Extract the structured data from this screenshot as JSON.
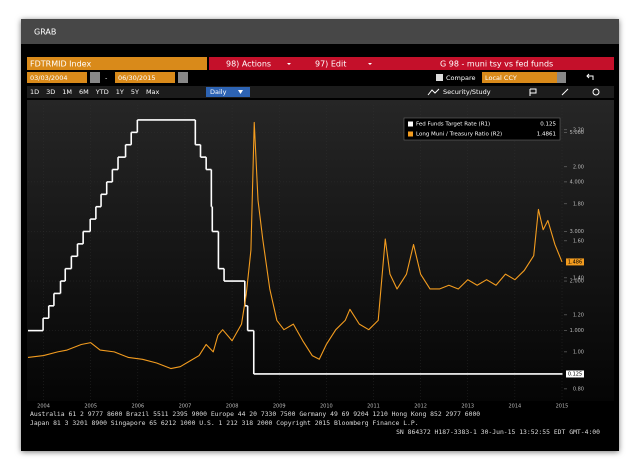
{
  "window_title": "GRAB",
  "toolbar": {
    "security": "FDTRMID Index",
    "actions": "98) Actions",
    "edit": "97) Edit",
    "page_title": "G 98 - muni tsy vs fed funds",
    "start_date": "03/03/2004",
    "date_separator": "-",
    "end_date": "06/30/2015",
    "compare": "Compare",
    "currency": "Local CCY",
    "periods": [
      "1D",
      "3D",
      "1M",
      "6M",
      "YTD",
      "1Y",
      "5Y",
      "Max"
    ],
    "frequency": "Daily",
    "study": "Security/Study"
  },
  "chart_data": {
    "type": "line",
    "xlim": [
      2004.17,
      2015.5
    ],
    "xticks": [
      {
        "value": 2004.5,
        "label": "2004"
      },
      {
        "value": 2005.5,
        "label": "2005"
      },
      {
        "value": 2006.5,
        "label": "2006"
      },
      {
        "value": 2007.5,
        "label": "2007"
      },
      {
        "value": 2008.5,
        "label": "2008"
      },
      {
        "value": 2009.5,
        "label": "2009"
      },
      {
        "value": 2010.5,
        "label": "2010"
      },
      {
        "value": 2011.5,
        "label": "2011"
      },
      {
        "value": 2012.5,
        "label": "2012"
      },
      {
        "value": 2013.5,
        "label": "2013"
      },
      {
        "value": 2014.5,
        "label": "2014"
      },
      {
        "value": 2015.5,
        "label": "2015"
      }
    ],
    "ylim": [
      -0.4,
      5.35
    ],
    "yticks": [
      {
        "value": 1,
        "label": "1.000"
      },
      {
        "value": 2,
        "label": "2.000"
      },
      {
        "value": 3,
        "label": "3.000"
      },
      {
        "value": 4,
        "label": "4.000"
      },
      {
        "value": 5,
        "label": "5.000"
      }
    ],
    "y2lim": [
      0.74,
      2.28
    ],
    "y2ticks": [
      {
        "value": 0.8,
        "label": "0.80"
      },
      {
        "value": 1.0,
        "label": "1.00"
      },
      {
        "value": 1.2,
        "label": "1.20"
      },
      {
        "value": 1.4,
        "label": "1.40"
      },
      {
        "value": 1.6,
        "label": "1.60"
      },
      {
        "value": 1.8,
        "label": "1.80"
      },
      {
        "value": 2.0,
        "label": "2.00"
      },
      {
        "value": 2.2,
        "label": "2.20"
      }
    ],
    "grid": true,
    "legend": "upper right",
    "series": [
      {
        "name": "Fed Funds Target Rate (R1)",
        "color": "#ffffff",
        "axis": "y",
        "step": true,
        "x": [
          2004.17,
          2004.49,
          2004.61,
          2004.72,
          2004.86,
          2004.96,
          2005.09,
          2005.22,
          2005.34,
          2005.49,
          2005.61,
          2005.72,
          2005.84,
          2005.96,
          2006.08,
          2006.24,
          2006.36,
          2006.49,
          2007.72,
          2007.83,
          2007.95,
          2008.06,
          2008.08,
          2008.21,
          2008.33,
          2008.77,
          2008.83,
          2008.96,
          2015.5
        ],
        "values": [
          1.0,
          1.25,
          1.5,
          1.75,
          2.0,
          2.25,
          2.5,
          2.75,
          3.0,
          3.25,
          3.5,
          3.75,
          4.0,
          4.25,
          4.5,
          4.75,
          5.0,
          5.25,
          4.75,
          4.5,
          4.25,
          3.5,
          3.0,
          2.25,
          2.0,
          1.5,
          1.0,
          0.125,
          0.125
        ]
      },
      {
        "name": "Long Muni / Treasury Ratio (R2)",
        "color": "#f39c1f",
        "axis": "y2",
        "end_tag": "1.486",
        "x": [
          2004.17,
          2004.5,
          2004.8,
          2005.0,
          2005.3,
          2005.5,
          2005.7,
          2006.0,
          2006.3,
          2006.6,
          2006.9,
          2007.2,
          2007.4,
          2007.6,
          2007.8,
          2007.95,
          2008.1,
          2008.2,
          2008.3,
          2008.5,
          2008.7,
          2008.8,
          2008.9,
          2008.97,
          2009.05,
          2009.15,
          2009.3,
          2009.45,
          2009.6,
          2009.8,
          2010.0,
          2010.2,
          2010.35,
          2010.5,
          2010.7,
          2010.9,
          2011.0,
          2011.2,
          2011.4,
          2011.6,
          2011.75,
          2011.85,
          2012.0,
          2012.2,
          2012.35,
          2012.5,
          2012.7,
          2012.9,
          2013.1,
          2013.3,
          2013.5,
          2013.7,
          2013.9,
          2014.1,
          2014.3,
          2014.5,
          2014.7,
          2014.9,
          2015.0,
          2015.1,
          2015.2,
          2015.35,
          2015.5
        ],
        "values": [
          0.97,
          0.98,
          1.0,
          1.01,
          1.04,
          1.05,
          1.01,
          1.0,
          0.97,
          0.96,
          0.94,
          0.91,
          0.92,
          0.95,
          0.98,
          1.04,
          1.0,
          1.09,
          1.12,
          1.06,
          1.15,
          1.31,
          1.55,
          2.24,
          1.82,
          1.61,
          1.34,
          1.17,
          1.12,
          1.15,
          1.06,
          0.98,
          0.96,
          1.04,
          1.12,
          1.17,
          1.23,
          1.15,
          1.12,
          1.17,
          1.61,
          1.42,
          1.34,
          1.42,
          1.58,
          1.42,
          1.34,
          1.34,
          1.36,
          1.34,
          1.39,
          1.36,
          1.39,
          1.36,
          1.42,
          1.39,
          1.44,
          1.52,
          1.77,
          1.66,
          1.71,
          1.58,
          1.4861
        ]
      }
    ]
  },
  "footer": [
    "Australia 61 2 9777 8600 Brazil 5511 2395 9000 Europe 44 20 7330 7500 Germany 49 69 9204 1210 Hong Kong 852 2977 6000",
    "Japan 81 3 3201 8900         Singapore 65 6212 1000       U.S. 1 212 318 2000         Copyright 2015 Bloomberg Finance L.P.",
    "SN 864372 H187-3383-1 30-Jun-15 13:52:55 EDT  GMT-4:00"
  ]
}
